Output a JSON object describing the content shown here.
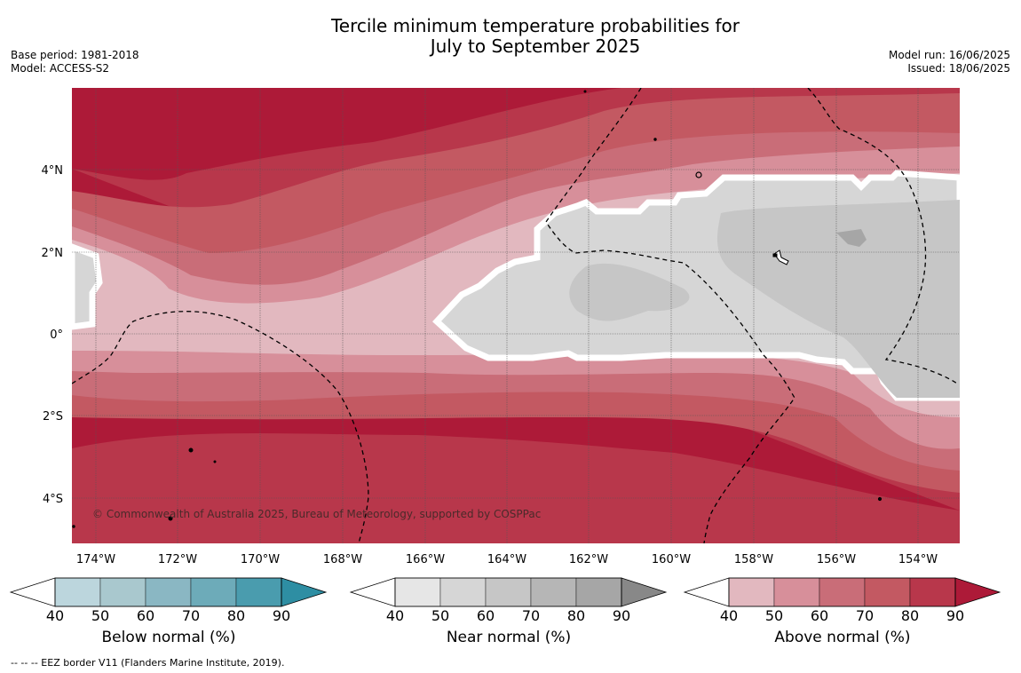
{
  "title": {
    "line1": "Tercile minimum temperature probabilities for",
    "line2": "July to September 2025"
  },
  "meta": {
    "base_period": "Base period: 1981-2018",
    "model": "Model: ACCESS-S2",
    "model_run": "Model run: 16/06/2025",
    "issued": "Issued: 18/06/2025"
  },
  "map": {
    "lat_labels": [
      "4°N",
      "2°N",
      "0°",
      "2°S",
      "4°S"
    ],
    "lon_labels": [
      "174°W",
      "172°W",
      "170°W",
      "168°W",
      "166°W",
      "164°W",
      "162°W",
      "160°W",
      "158°W",
      "156°W",
      "154°W"
    ],
    "copyright": "© Commonwealth of Australia 2025, Bureau of Meteorology, supported by COSPPac"
  },
  "legends": [
    {
      "title": "Below normal (%)",
      "ticks": [
        "40",
        "50",
        "60",
        "70",
        "80",
        "90"
      ],
      "colors": [
        "#bcd6dd",
        "#a9c8ce",
        "#8ab7c3",
        "#6dabb9",
        "#4a9cae",
        "#2e8ea3"
      ]
    },
    {
      "title": "Near normal (%)",
      "ticks": [
        "40",
        "50",
        "60",
        "70",
        "80",
        "90"
      ],
      "colors": [
        "#e6e6e6",
        "#d6d6d6",
        "#c6c6c6",
        "#b6b6b6",
        "#a6a6a6",
        "#888888"
      ]
    },
    {
      "title": "Above normal (%)",
      "ticks": [
        "40",
        "50",
        "60",
        "70",
        "80",
        "90"
      ],
      "colors": [
        "#e2b8bf",
        "#d78f9a",
        "#c96d78",
        "#c35962",
        "#b8374b",
        "#ad1a38"
      ]
    }
  ],
  "footnote": "--  --  -- EEZ border V11 (Flanders Marine Institute, 2019)."
}
